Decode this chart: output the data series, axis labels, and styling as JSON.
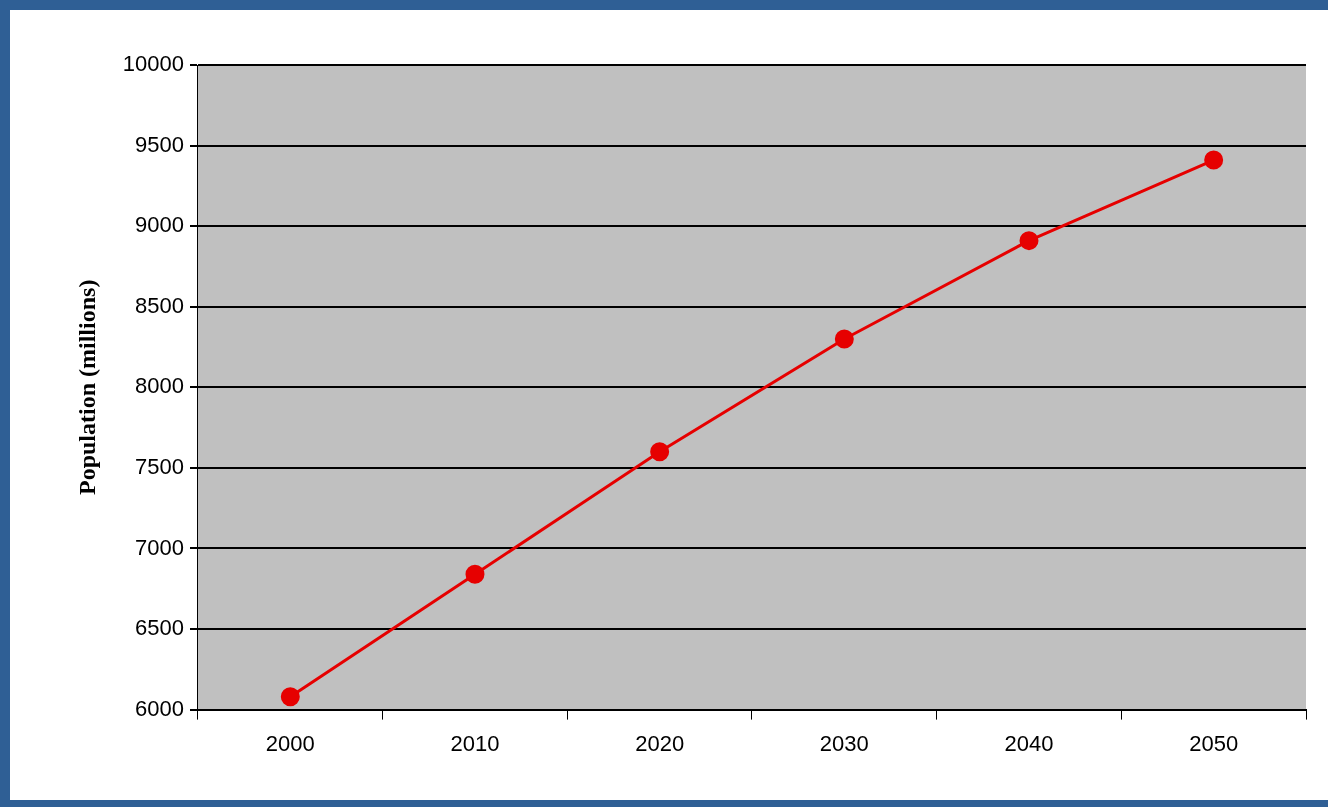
{
  "chart_data": {
    "type": "line",
    "ylabel": "Population (millions)",
    "categories": [
      "2000",
      "2010",
      "2020",
      "2030",
      "2040",
      "2050"
    ],
    "series": [
      {
        "color": "#e60000",
        "values": [
          6080,
          6840,
          7600,
          8300,
          8910,
          9410
        ]
      }
    ],
    "ylim": [
      6000,
      10000
    ],
    "yticks": [
      6000,
      6500,
      7000,
      7500,
      8000,
      8500,
      9000,
      9500,
      10000
    ],
    "grid": "y",
    "legend": false,
    "marker": "circle",
    "line_style": "solid"
  }
}
